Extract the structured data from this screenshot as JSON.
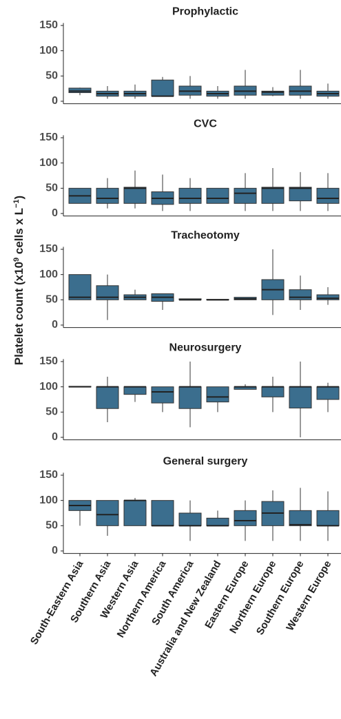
{
  "chart_data": [
    {
      "type": "box",
      "title": "Prophylactic",
      "color": "#3b6e8e",
      "ylim": [
        -5,
        155
      ],
      "yticks": [
        0,
        50,
        100,
        150
      ],
      "boxes": [
        [
          12,
          17,
          20,
          26,
          27
        ],
        [
          5,
          10,
          15,
          20,
          30
        ],
        [
          5,
          10,
          15,
          20,
          33
        ],
        [
          10,
          10,
          10,
          42,
          48
        ],
        [
          5,
          12,
          20,
          30,
          50
        ],
        [
          5,
          10,
          15,
          20,
          30
        ],
        [
          5,
          12,
          20,
          30,
          62
        ],
        [
          10,
          12,
          18,
          20,
          28
        ],
        [
          5,
          12,
          20,
          30,
          62
        ],
        [
          5,
          10,
          15,
          20,
          35
        ]
      ]
    },
    {
      "type": "box",
      "title": "CVC",
      "color": "#3b6e8e",
      "ylim": [
        -5,
        155
      ],
      "yticks": [
        0,
        50,
        100,
        150
      ],
      "boxes": [
        [
          20,
          20,
          35,
          50,
          50
        ],
        [
          10,
          20,
          30,
          50,
          70
        ],
        [
          10,
          20,
          50,
          52,
          85
        ],
        [
          5,
          18,
          30,
          43,
          77
        ],
        [
          5,
          20,
          30,
          50,
          70
        ],
        [
          20,
          20,
          30,
          50,
          50
        ],
        [
          5,
          20,
          40,
          50,
          80
        ],
        [
          5,
          20,
          50,
          52,
          90
        ],
        [
          5,
          25,
          50,
          52,
          82
        ],
        [
          5,
          20,
          30,
          50,
          80
        ]
      ]
    },
    {
      "type": "box",
      "title": "Tracheotomy",
      "color": "#3b6e8e",
      "ylim": [
        -5,
        155
      ],
      "yticks": [
        0,
        50,
        100,
        150
      ],
      "y_label": [
        "Platelet count (x10",
        "9",
        " cells x L",
        "−1",
        ")"
      ],
      "boxes": [
        [
          50,
          50,
          55,
          100,
          100
        ],
        [
          10,
          50,
          55,
          78,
          100
        ],
        [
          50,
          50,
          55,
          60,
          70
        ],
        [
          30,
          47,
          55,
          62,
          62
        ],
        [
          50,
          50,
          50,
          52,
          52
        ],
        [
          50,
          50,
          50,
          51,
          51
        ],
        [
          50,
          50,
          52,
          55,
          55
        ],
        [
          20,
          50,
          70,
          90,
          150
        ],
        [
          30,
          50,
          55,
          70,
          98
        ],
        [
          40,
          50,
          53,
          60,
          75
        ]
      ]
    },
    {
      "type": "box",
      "title": "Neurosurgery",
      "color": "#3b6e8e",
      "ylim": [
        -5,
        155
      ],
      "yticks": [
        0,
        50,
        100,
        150
      ],
      "boxes": [
        [
          100,
          100,
          100,
          101,
          101
        ],
        [
          30,
          57,
          100,
          100,
          120
        ],
        [
          70,
          85,
          100,
          100,
          100
        ],
        [
          50,
          68,
          90,
          100,
          100
        ],
        [
          20,
          57,
          100,
          100,
          150
        ],
        [
          50,
          70,
          80,
          100,
          100
        ],
        [
          95,
          95,
          100,
          100,
          105
        ],
        [
          50,
          80,
          100,
          100,
          120
        ],
        [
          0,
          58,
          100,
          100,
          150
        ],
        [
          50,
          75,
          100,
          100,
          108
        ]
      ]
    },
    {
      "type": "box",
      "title": "General surgery",
      "color": "#3b6e8e",
      "ylim": [
        -5,
        155
      ],
      "yticks": [
        0,
        50,
        100,
        150
      ],
      "categories": [
        "South-Eastern Asia",
        "Southern Asia",
        "Western Asia",
        "Northern America",
        "South America",
        "Australia and New Zealand",
        "Eastern Europe",
        "Northern Europe",
        "Southern Europe",
        "Western Europe"
      ],
      "boxes": [
        [
          50,
          80,
          90,
          100,
          100
        ],
        [
          30,
          50,
          72,
          100,
          100
        ],
        [
          50,
          50,
          100,
          100,
          105
        ],
        [
          50,
          50,
          50,
          100,
          100
        ],
        [
          20,
          50,
          50,
          75,
          100
        ],
        [
          50,
          50,
          50,
          65,
          80
        ],
        [
          20,
          50,
          60,
          80,
          100
        ],
        [
          20,
          50,
          75,
          98,
          120
        ],
        [
          20,
          50,
          52,
          80,
          125
        ],
        [
          20,
          50,
          50,
          80,
          118
        ]
      ]
    }
  ]
}
